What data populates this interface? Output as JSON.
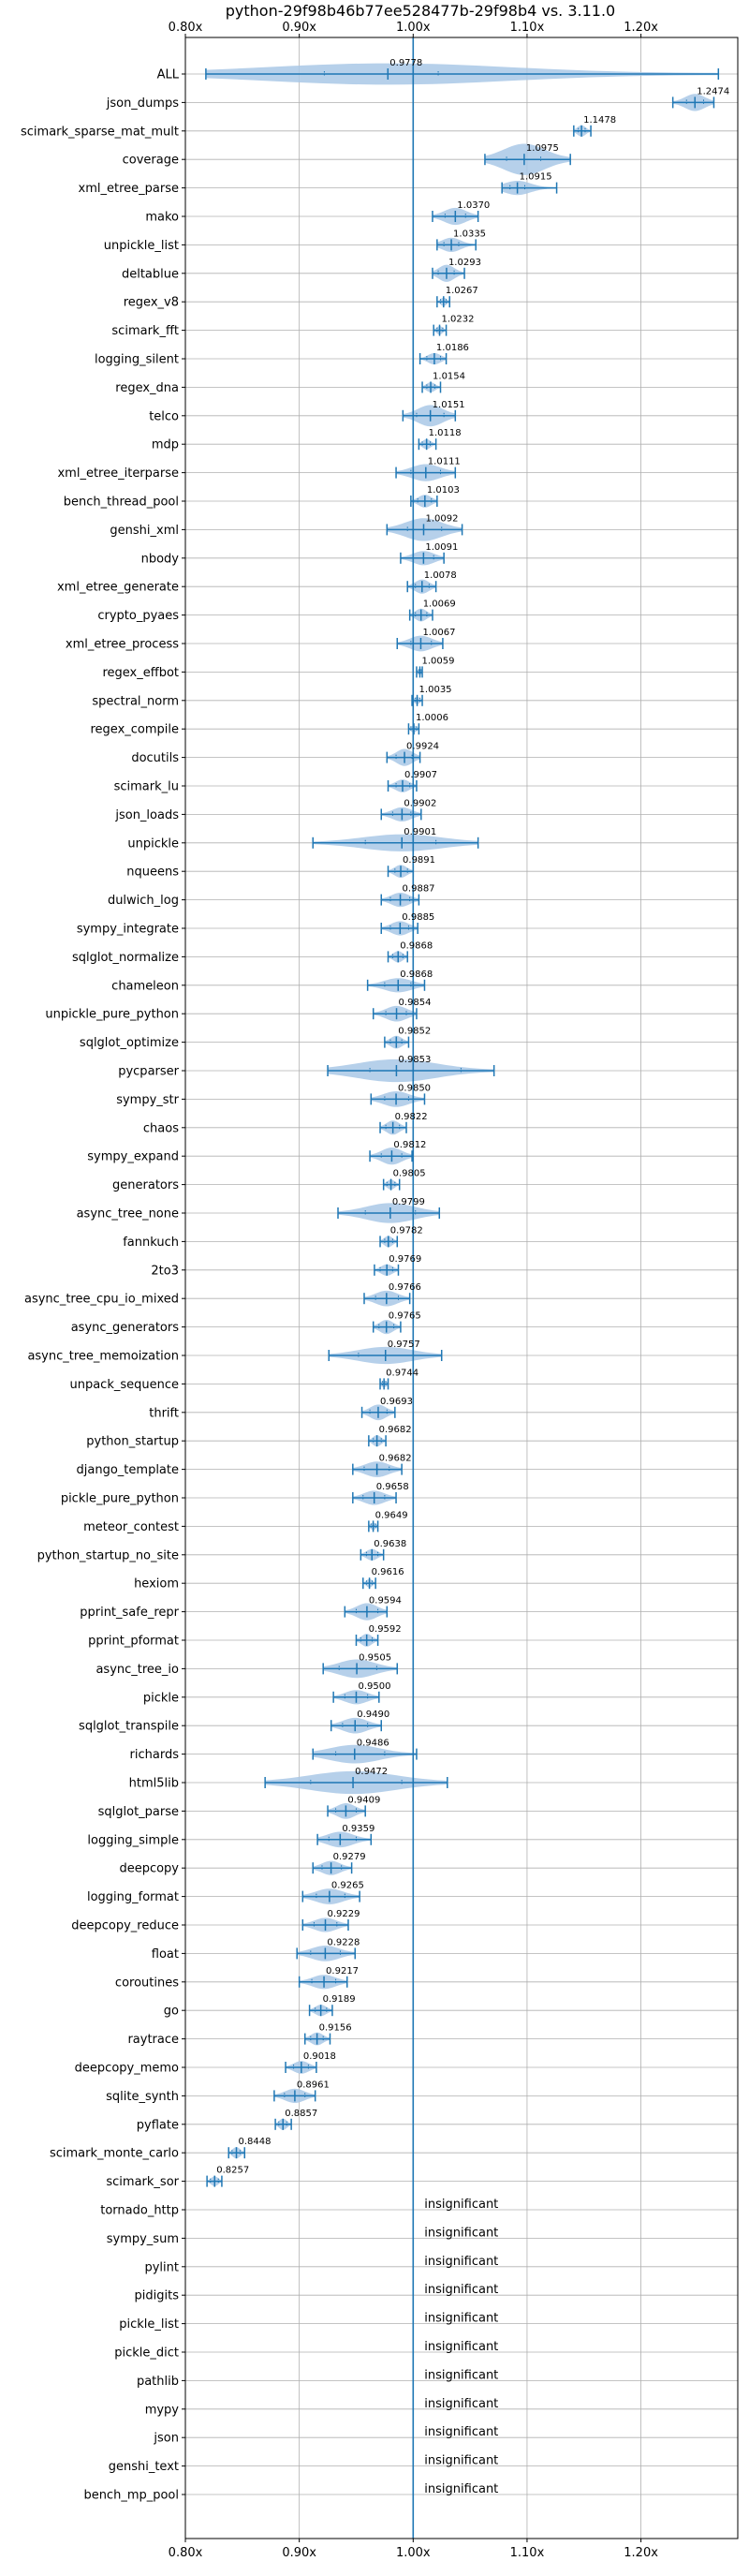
{
  "chart_data": {
    "type": "violin",
    "title": "python-29f98b46b77ee528477b-29f98b4 vs. 3.11.0",
    "xlim": [
      0.8,
      1.285
    ],
    "xticks": [
      0.8,
      0.9,
      1.0,
      1.1,
      1.2
    ],
    "xtick_labels": [
      "0.80x",
      "0.90x",
      "1.00x",
      "1.10x",
      "1.20x"
    ],
    "reference_line": 1.0,
    "grid": true,
    "color": "#1f77b4",
    "fill_color": "#a9c8e6",
    "insignificant_label": "insignificant",
    "benchmarks": [
      {
        "name": "ALL",
        "label": "0.9778",
        "value": 0.9778,
        "min": 0.818,
        "max": 1.268,
        "q1": 0.922,
        "q3": 1.022,
        "spread": 0.015
      },
      {
        "name": "json_dumps",
        "label": "1.2474",
        "value": 1.2474,
        "min": 1.228,
        "max": 1.264,
        "q1": 1.24,
        "q3": 1.255,
        "spread": 0.012
      },
      {
        "name": "scimark_sparse_mat_mult",
        "label": "1.1478",
        "value": 1.1478,
        "min": 1.141,
        "max": 1.156,
        "q1": 1.145,
        "q3": 1.151,
        "spread": 0.008
      },
      {
        "name": "coverage",
        "label": "1.0975",
        "value": 1.0975,
        "min": 1.063,
        "max": 1.138,
        "q1": 1.082,
        "q3": 1.112,
        "spread": 0.025
      },
      {
        "name": "xml_etree_parse",
        "label": "1.0915",
        "value": 1.0915,
        "min": 1.078,
        "max": 1.126,
        "q1": 1.085,
        "q3": 1.098,
        "spread": 0.01
      },
      {
        "name": "mako",
        "label": "1.0370",
        "value": 1.037,
        "min": 1.017,
        "max": 1.057,
        "q1": 1.028,
        "q3": 1.046,
        "spread": 0.012
      },
      {
        "name": "unpickle_list",
        "label": "1.0335",
        "value": 1.0335,
        "min": 1.021,
        "max": 1.055,
        "q1": 1.027,
        "q3": 1.04,
        "spread": 0.01
      },
      {
        "name": "deltablue",
        "label": "1.0293",
        "value": 1.0293,
        "min": 1.017,
        "max": 1.045,
        "q1": 1.022,
        "q3": 1.036,
        "spread": 0.012
      },
      {
        "name": "regex_v8",
        "label": "1.0267",
        "value": 1.0267,
        "min": 1.021,
        "max": 1.032,
        "q1": 1.024,
        "q3": 1.029,
        "spread": 0.006
      },
      {
        "name": "scimark_fft",
        "label": "1.0232",
        "value": 1.0232,
        "min": 1.018,
        "max": 1.029,
        "q1": 1.021,
        "q3": 1.026,
        "spread": 0.006
      },
      {
        "name": "logging_silent",
        "label": "1.0186",
        "value": 1.0186,
        "min": 1.006,
        "max": 1.029,
        "q1": 1.012,
        "q3": 1.024,
        "spread": 0.008
      },
      {
        "name": "regex_dna",
        "label": "1.0154",
        "value": 1.0154,
        "min": 1.008,
        "max": 1.024,
        "q1": 1.012,
        "q3": 1.019,
        "spread": 0.007
      },
      {
        "name": "telco",
        "label": "1.0151",
        "value": 1.0151,
        "min": 0.991,
        "max": 1.037,
        "q1": 1.003,
        "q3": 1.027,
        "spread": 0.015
      },
      {
        "name": "mdp",
        "label": "1.0118",
        "value": 1.0118,
        "min": 1.005,
        "max": 1.02,
        "q1": 1.008,
        "q3": 1.015,
        "spread": 0.007
      },
      {
        "name": "xml_etree_iterparse",
        "label": "1.0111",
        "value": 1.0111,
        "min": 0.985,
        "max": 1.037,
        "q1": 0.998,
        "q3": 1.024,
        "spread": 0.012
      },
      {
        "name": "bench_thread_pool",
        "label": "1.0103",
        "value": 1.0103,
        "min": 0.998,
        "max": 1.021,
        "q1": 1.004,
        "q3": 1.016,
        "spread": 0.009
      },
      {
        "name": "genshi_xml",
        "label": "1.0092",
        "value": 1.0092,
        "min": 0.977,
        "max": 1.043,
        "q1": 0.995,
        "q3": 1.025,
        "spread": 0.016
      },
      {
        "name": "nbody",
        "label": "1.0091",
        "value": 1.0091,
        "min": 0.989,
        "max": 1.027,
        "q1": 1.0,
        "q3": 1.018,
        "spread": 0.01
      },
      {
        "name": "xml_etree_generate",
        "label": "1.0078",
        "value": 1.0078,
        "min": 0.995,
        "max": 1.02,
        "q1": 1.002,
        "q3": 1.014,
        "spread": 0.01
      },
      {
        "name": "crypto_pyaes",
        "label": "1.0069",
        "value": 1.0069,
        "min": 0.997,
        "max": 1.017,
        "q1": 1.002,
        "q3": 1.012,
        "spread": 0.009
      },
      {
        "name": "xml_etree_process",
        "label": "1.0067",
        "value": 1.0067,
        "min": 0.986,
        "max": 1.026,
        "q1": 0.998,
        "q3": 1.016,
        "spread": 0.011
      },
      {
        "name": "regex_effbot",
        "label": "1.0059",
        "value": 1.0059,
        "min": 1.003,
        "max": 1.008,
        "q1": 1.005,
        "q3": 1.007,
        "spread": 0.004
      },
      {
        "name": "spectral_norm",
        "label": "1.0035",
        "value": 1.0035,
        "min": 0.999,
        "max": 1.008,
        "q1": 1.002,
        "q3": 1.006,
        "spread": 0.005
      },
      {
        "name": "regex_compile",
        "label": "1.0006",
        "value": 1.0006,
        "min": 0.996,
        "max": 1.005,
        "q1": 0.998,
        "q3": 1.003,
        "spread": 0.005
      },
      {
        "name": "docutils",
        "label": "0.9924",
        "value": 0.9924,
        "min": 0.977,
        "max": 1.006,
        "q1": 0.985,
        "q3": 0.999,
        "spread": 0.012
      },
      {
        "name": "scimark_lu",
        "label": "0.9907",
        "value": 0.9907,
        "min": 0.978,
        "max": 1.003,
        "q1": 0.985,
        "q3": 0.997,
        "spread": 0.009
      },
      {
        "name": "json_loads",
        "label": "0.9902",
        "value": 0.9902,
        "min": 0.972,
        "max": 1.007,
        "q1": 0.982,
        "q3": 0.998,
        "spread": 0.01
      },
      {
        "name": "unpickle",
        "label": "0.9901",
        "value": 0.9901,
        "min": 0.912,
        "max": 1.057,
        "q1": 0.958,
        "q3": 1.02,
        "spread": 0.012
      },
      {
        "name": "nqueens",
        "label": "0.9891",
        "value": 0.9891,
        "min": 0.978,
        "max": 1.0,
        "q1": 0.984,
        "q3": 0.995,
        "spread": 0.009
      },
      {
        "name": "dulwich_log",
        "label": "0.9887",
        "value": 0.9887,
        "min": 0.972,
        "max": 1.005,
        "q1": 0.98,
        "q3": 0.997,
        "spread": 0.01
      },
      {
        "name": "sympy_integrate",
        "label": "0.9885",
        "value": 0.9885,
        "min": 0.972,
        "max": 1.004,
        "q1": 0.98,
        "q3": 0.996,
        "spread": 0.01
      },
      {
        "name": "sqlglot_normalize",
        "label": "0.9868",
        "value": 0.9868,
        "min": 0.978,
        "max": 0.995,
        "q1": 0.982,
        "q3": 0.991,
        "spread": 0.008
      },
      {
        "name": "chameleon",
        "label": "0.9868",
        "value": 0.9868,
        "min": 0.96,
        "max": 1.01,
        "q1": 0.975,
        "q3": 0.998,
        "spread": 0.01
      },
      {
        "name": "unpickle_pure_python",
        "label": "0.9854",
        "value": 0.9854,
        "min": 0.965,
        "max": 1.003,
        "q1": 0.976,
        "q3": 0.994,
        "spread": 0.011
      },
      {
        "name": "sqlglot_optimize",
        "label": "0.9852",
        "value": 0.9852,
        "min": 0.975,
        "max": 0.996,
        "q1": 0.98,
        "q3": 0.99,
        "spread": 0.009
      },
      {
        "name": "pycparser",
        "label": "0.9853",
        "value": 0.9853,
        "min": 0.925,
        "max": 1.071,
        "q1": 0.962,
        "q3": 1.042,
        "spread": 0.016
      },
      {
        "name": "sympy_str",
        "label": "0.9850",
        "value": 0.985,
        "min": 0.963,
        "max": 1.01,
        "q1": 0.975,
        "q3": 0.996,
        "spread": 0.011
      },
      {
        "name": "chaos",
        "label": "0.9822",
        "value": 0.9822,
        "min": 0.971,
        "max": 0.994,
        "q1": 0.976,
        "q3": 0.988,
        "spread": 0.01
      },
      {
        "name": "sympy_expand",
        "label": "0.9812",
        "value": 0.9812,
        "min": 0.962,
        "max": 0.999,
        "q1": 0.972,
        "q3": 0.99,
        "spread": 0.012
      },
      {
        "name": "generators",
        "label": "0.9805",
        "value": 0.9805,
        "min": 0.974,
        "max": 0.988,
        "q1": 0.977,
        "q3": 0.984,
        "spread": 0.007
      },
      {
        "name": "async_tree_none",
        "label": "0.9799",
        "value": 0.9799,
        "min": 0.934,
        "max": 1.023,
        "q1": 0.958,
        "q3": 1.002,
        "spread": 0.014
      },
      {
        "name": "fannkuch",
        "label": "0.9782",
        "value": 0.9782,
        "min": 0.971,
        "max": 0.986,
        "q1": 0.975,
        "q3": 0.982,
        "spread": 0.008
      },
      {
        "name": "2to3",
        "label": "0.9769",
        "value": 0.9769,
        "min": 0.966,
        "max": 0.987,
        "q1": 0.971,
        "q3": 0.982,
        "spread": 0.008
      },
      {
        "name": "async_tree_cpu_io_mixed",
        "label": "0.9766",
        "value": 0.9766,
        "min": 0.957,
        "max": 0.997,
        "q1": 0.967,
        "q3": 0.987,
        "spread": 0.011
      },
      {
        "name": "async_generators",
        "label": "0.9765",
        "value": 0.9765,
        "min": 0.965,
        "max": 0.989,
        "q1": 0.97,
        "q3": 0.983,
        "spread": 0.01
      },
      {
        "name": "async_tree_memoization",
        "label": "0.9757",
        "value": 0.9757,
        "min": 0.926,
        "max": 1.025,
        "q1": 0.952,
        "q3": 1.0,
        "spread": 0.012
      },
      {
        "name": "unpack_sequence",
        "label": "0.9744",
        "value": 0.9744,
        "min": 0.971,
        "max": 0.978,
        "q1": 0.973,
        "q3": 0.976,
        "spread": 0.005
      },
      {
        "name": "thrift",
        "label": "0.9693",
        "value": 0.9693,
        "min": 0.955,
        "max": 0.984,
        "q1": 0.962,
        "q3": 0.977,
        "spread": 0.011
      },
      {
        "name": "python_startup",
        "label": "0.9682",
        "value": 0.9682,
        "min": 0.961,
        "max": 0.976,
        "q1": 0.965,
        "q3": 0.972,
        "spread": 0.008
      },
      {
        "name": "django_template",
        "label": "0.9682",
        "value": 0.9682,
        "min": 0.947,
        "max": 0.99,
        "q1": 0.957,
        "q3": 0.979,
        "spread": 0.011
      },
      {
        "name": "pickle_pure_python",
        "label": "0.9658",
        "value": 0.9658,
        "min": 0.947,
        "max": 0.985,
        "q1": 0.956,
        "q3": 0.975,
        "spread": 0.01
      },
      {
        "name": "meteor_contest",
        "label": "0.9649",
        "value": 0.9649,
        "min": 0.961,
        "max": 0.969,
        "q1": 0.963,
        "q3": 0.967,
        "spread": 0.005
      },
      {
        "name": "python_startup_no_site",
        "label": "0.9638",
        "value": 0.9638,
        "min": 0.954,
        "max": 0.974,
        "q1": 0.959,
        "q3": 0.969,
        "spread": 0.008
      },
      {
        "name": "hexiom",
        "label": "0.9616",
        "value": 0.9616,
        "min": 0.956,
        "max": 0.967,
        "q1": 0.959,
        "q3": 0.964,
        "spread": 0.006
      },
      {
        "name": "pprint_safe_repr",
        "label": "0.9594",
        "value": 0.9594,
        "min": 0.94,
        "max": 0.977,
        "q1": 0.95,
        "q3": 0.969,
        "spread": 0.012
      },
      {
        "name": "pprint_pformat",
        "label": "0.9592",
        "value": 0.9592,
        "min": 0.95,
        "max": 0.969,
        "q1": 0.954,
        "q3": 0.964,
        "spread": 0.009
      },
      {
        "name": "async_tree_io",
        "label": "0.9505",
        "value": 0.9505,
        "min": 0.921,
        "max": 0.986,
        "q1": 0.935,
        "q3": 0.968,
        "spread": 0.013
      },
      {
        "name": "pickle",
        "label": "0.9500",
        "value": 0.95,
        "min": 0.93,
        "max": 0.97,
        "q1": 0.94,
        "q3": 0.96,
        "spread": 0.01
      },
      {
        "name": "sqlglot_transpile",
        "label": "0.9490",
        "value": 0.949,
        "min": 0.928,
        "max": 0.972,
        "q1": 0.938,
        "q3": 0.96,
        "spread": 0.011
      },
      {
        "name": "richards",
        "label": "0.9486",
        "value": 0.9486,
        "min": 0.912,
        "max": 1.003,
        "q1": 0.932,
        "q3": 0.975,
        "spread": 0.013
      },
      {
        "name": "html5lib",
        "label": "0.9472",
        "value": 0.9472,
        "min": 0.87,
        "max": 1.03,
        "q1": 0.91,
        "q3": 0.99,
        "spread": 0.016
      },
      {
        "name": "sqlglot_parse",
        "label": "0.9409",
        "value": 0.9409,
        "min": 0.925,
        "max": 0.958,
        "q1": 0.932,
        "q3": 0.95,
        "spread": 0.011
      },
      {
        "name": "logging_simple",
        "label": "0.9359",
        "value": 0.9359,
        "min": 0.916,
        "max": 0.963,
        "q1": 0.926,
        "q3": 0.95,
        "spread": 0.011
      },
      {
        "name": "deepcopy",
        "label": "0.9279",
        "value": 0.9279,
        "min": 0.912,
        "max": 0.946,
        "q1": 0.92,
        "q3": 0.937,
        "spread": 0.01
      },
      {
        "name": "logging_format",
        "label": "0.9265",
        "value": 0.9265,
        "min": 0.903,
        "max": 0.953,
        "q1": 0.915,
        "q3": 0.94,
        "spread": 0.011
      },
      {
        "name": "deepcopy_reduce",
        "label": "0.9229",
        "value": 0.9229,
        "min": 0.903,
        "max": 0.943,
        "q1": 0.913,
        "q3": 0.933,
        "spread": 0.01
      },
      {
        "name": "float",
        "label": "0.9228",
        "value": 0.9228,
        "min": 0.898,
        "max": 0.949,
        "q1": 0.91,
        "q3": 0.936,
        "spread": 0.011
      },
      {
        "name": "coroutines",
        "label": "0.9217",
        "value": 0.9217,
        "min": 0.9,
        "max": 0.942,
        "q1": 0.911,
        "q3": 0.932,
        "spread": 0.01
      },
      {
        "name": "go",
        "label": "0.9189",
        "value": 0.9189,
        "min": 0.909,
        "max": 0.929,
        "q1": 0.914,
        "q3": 0.924,
        "spread": 0.008
      },
      {
        "name": "raytrace",
        "label": "0.9156",
        "value": 0.9156,
        "min": 0.905,
        "max": 0.927,
        "q1": 0.91,
        "q3": 0.921,
        "spread": 0.009
      },
      {
        "name": "deepcopy_memo",
        "label": "0.9018",
        "value": 0.9018,
        "min": 0.888,
        "max": 0.915,
        "q1": 0.895,
        "q3": 0.908,
        "spread": 0.009
      },
      {
        "name": "sqlite_synth",
        "label": "0.8961",
        "value": 0.8961,
        "min": 0.878,
        "max": 0.914,
        "q1": 0.887,
        "q3": 0.905,
        "spread": 0.01
      },
      {
        "name": "pyflate",
        "label": "0.8857",
        "value": 0.8857,
        "min": 0.879,
        "max": 0.893,
        "q1": 0.882,
        "q3": 0.889,
        "spread": 0.008
      },
      {
        "name": "scimark_monte_carlo",
        "label": "0.8448",
        "value": 0.8448,
        "min": 0.838,
        "max": 0.852,
        "q1": 0.841,
        "q3": 0.848,
        "spread": 0.008
      },
      {
        "name": "scimark_sor",
        "label": "0.8257",
        "value": 0.8257,
        "min": 0.819,
        "max": 0.832,
        "q1": 0.822,
        "q3": 0.829,
        "spread": 0.007
      },
      {
        "name": "tornado_http",
        "insignificant": true
      },
      {
        "name": "sympy_sum",
        "insignificant": true
      },
      {
        "name": "pylint",
        "insignificant": true
      },
      {
        "name": "pidigits",
        "insignificant": true
      },
      {
        "name": "pickle_list",
        "insignificant": true
      },
      {
        "name": "pickle_dict",
        "insignificant": true
      },
      {
        "name": "pathlib",
        "insignificant": true
      },
      {
        "name": "mypy",
        "insignificant": true
      },
      {
        "name": "json",
        "insignificant": true
      },
      {
        "name": "genshi_text",
        "insignificant": true
      },
      {
        "name": "bench_mp_pool",
        "insignificant": true
      }
    ]
  }
}
